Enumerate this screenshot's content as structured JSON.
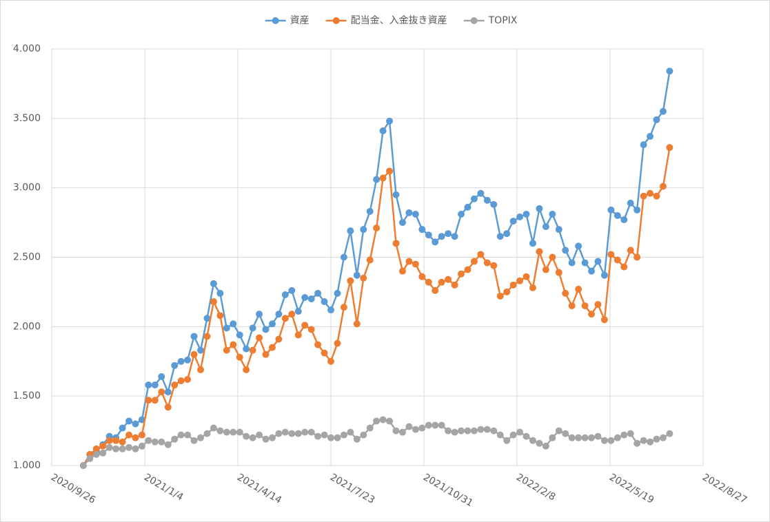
{
  "chart_data": {
    "type": "line",
    "x": [
      "2020/10/30",
      "2020/11/6",
      "2020/11/13",
      "2020/11/20",
      "2020/11/27",
      "2020/12/4",
      "2020/12/11",
      "2020/12/18",
      "2020/12/25",
      "2021/1/1",
      "2021/1/8",
      "2021/1/15",
      "2021/1/22",
      "2021/1/29",
      "2021/2/5",
      "2021/2/12",
      "2021/2/19",
      "2021/2/26",
      "2021/3/5",
      "2021/3/12",
      "2021/3/19",
      "2021/3/26",
      "2021/4/2",
      "2021/4/9",
      "2021/4/16",
      "2021/4/23",
      "2021/4/30",
      "2021/5/7",
      "2021/5/14",
      "2021/5/21",
      "2021/5/28",
      "2021/6/4",
      "2021/6/11",
      "2021/6/18",
      "2021/6/25",
      "2021/7/2",
      "2021/7/9",
      "2021/7/16",
      "2021/7/23",
      "2021/7/30",
      "2021/8/6",
      "2021/8/13",
      "2021/8/20",
      "2021/8/27",
      "2021/9/3",
      "2021/9/10",
      "2021/9/17",
      "2021/9/24",
      "2021/10/1",
      "2021/10/8",
      "2021/10/15",
      "2021/10/22",
      "2021/10/29",
      "2021/11/5",
      "2021/11/12",
      "2021/11/19",
      "2021/11/26",
      "2021/12/3",
      "2021/12/10",
      "2021/12/17",
      "2021/12/24",
      "2021/12/31",
      "2022/1/7",
      "2022/1/14",
      "2022/1/21",
      "2022/1/28",
      "2022/2/4",
      "2022/2/11",
      "2022/2/18",
      "2022/2/25",
      "2022/3/4",
      "2022/3/11",
      "2022/3/18",
      "2022/3/25",
      "2022/4/1",
      "2022/4/8",
      "2022/4/15",
      "2022/4/22",
      "2022/4/29",
      "2022/5/6",
      "2022/5/13",
      "2022/5/20",
      "2022/5/27",
      "2022/6/3",
      "2022/6/10",
      "2022/6/17",
      "2022/6/24",
      "2022/7/1",
      "2022/7/8",
      "2022/7/15",
      "2022/7/22"
    ],
    "series": [
      {
        "name": "資産",
        "color": "#5b9bd5",
        "values": [
          1.0,
          1.08,
          1.1,
          1.15,
          1.21,
          1.2,
          1.27,
          1.32,
          1.3,
          1.33,
          1.58,
          1.58,
          1.64,
          1.53,
          1.72,
          1.75,
          1.76,
          1.93,
          1.83,
          2.06,
          2.31,
          2.24,
          1.99,
          2.02,
          1.94,
          1.84,
          1.99,
          2.09,
          1.98,
          2.02,
          2.09,
          2.23,
          2.26,
          2.11,
          2.21,
          2.2,
          2.24,
          2.18,
          2.12,
          2.24,
          2.5,
          2.69,
          2.37,
          2.7,
          2.83,
          3.06,
          3.41,
          3.48,
          2.95,
          2.75,
          2.82,
          2.81,
          2.7,
          2.66,
          2.61,
          2.65,
          2.67,
          2.65,
          2.81,
          2.86,
          2.92,
          2.96,
          2.91,
          2.88,
          2.65,
          2.67,
          2.76,
          2.79,
          2.81,
          2.6,
          2.85,
          2.72,
          2.81,
          2.7,
          2.55,
          2.46,
          2.58,
          2.46,
          2.4,
          2.47,
          2.37,
          2.84,
          2.8,
          2.77,
          2.89,
          2.84,
          3.31,
          3.37,
          3.49,
          3.55,
          3.84
        ]
      },
      {
        "name": "配当金、入金抜き資産",
        "color": "#ed7d31",
        "values": [
          1.0,
          1.08,
          1.12,
          1.14,
          1.18,
          1.18,
          1.17,
          1.22,
          1.2,
          1.22,
          1.47,
          1.47,
          1.53,
          1.42,
          1.58,
          1.61,
          1.62,
          1.8,
          1.69,
          1.93,
          2.18,
          2.08,
          1.83,
          1.87,
          1.78,
          1.69,
          1.83,
          1.92,
          1.8,
          1.85,
          1.91,
          2.06,
          2.09,
          1.94,
          2.01,
          1.98,
          1.87,
          1.81,
          1.75,
          1.88,
          2.14,
          2.33,
          2.02,
          2.35,
          2.48,
          2.71,
          3.07,
          3.12,
          2.6,
          2.4,
          2.47,
          2.45,
          2.36,
          2.32,
          2.26,
          2.32,
          2.34,
          2.3,
          2.38,
          2.41,
          2.47,
          2.52,
          2.46,
          2.44,
          2.22,
          2.25,
          2.3,
          2.33,
          2.36,
          2.28,
          2.54,
          2.41,
          2.5,
          2.39,
          2.24,
          2.15,
          2.27,
          2.15,
          2.09,
          2.16,
          2.05,
          2.52,
          2.48,
          2.43,
          2.55,
          2.5,
          2.94,
          2.96,
          2.94,
          3.01,
          3.29
        ]
      },
      {
        "name": "TOPIX",
        "color": "#a5a5a5",
        "values": [
          1.0,
          1.05,
          1.08,
          1.09,
          1.13,
          1.12,
          1.12,
          1.13,
          1.12,
          1.14,
          1.18,
          1.17,
          1.17,
          1.15,
          1.19,
          1.22,
          1.22,
          1.18,
          1.2,
          1.23,
          1.27,
          1.25,
          1.24,
          1.24,
          1.24,
          1.21,
          1.2,
          1.22,
          1.19,
          1.2,
          1.23,
          1.24,
          1.23,
          1.23,
          1.24,
          1.24,
          1.21,
          1.22,
          1.2,
          1.2,
          1.22,
          1.24,
          1.19,
          1.22,
          1.27,
          1.32,
          1.33,
          1.32,
          1.25,
          1.24,
          1.28,
          1.26,
          1.27,
          1.29,
          1.29,
          1.29,
          1.25,
          1.24,
          1.25,
          1.25,
          1.25,
          1.26,
          1.26,
          1.25,
          1.22,
          1.18,
          1.22,
          1.24,
          1.21,
          1.18,
          1.16,
          1.14,
          1.2,
          1.25,
          1.23,
          1.2,
          1.2,
          1.2,
          1.2,
          1.21,
          1.18,
          1.18,
          1.2,
          1.22,
          1.23,
          1.16,
          1.18,
          1.17,
          1.19,
          1.2,
          1.23
        ]
      }
    ],
    "xlim": [
      "2020/9/26",
      "2022/8/27"
    ],
    "xticks": [
      "2020/9/26",
      "2021/1/4",
      "2021/4/14",
      "2021/7/23",
      "2021/10/31",
      "2022/2/8",
      "2022/5/19",
      "2022/8/27"
    ],
    "ylim": [
      1,
      4
    ],
    "yticks": [
      {
        "value": 1,
        "label": "1.000"
      },
      {
        "value": 1.5,
        "label": "1.500"
      },
      {
        "value": 2,
        "label": "2.000"
      },
      {
        "value": 2.5,
        "label": "2.500"
      },
      {
        "value": 3,
        "label": "3.000"
      },
      {
        "value": 3.5,
        "label": "3.500"
      },
      {
        "value": 4,
        "label": "4.000"
      }
    ],
    "grid": true,
    "legend": "top"
  }
}
